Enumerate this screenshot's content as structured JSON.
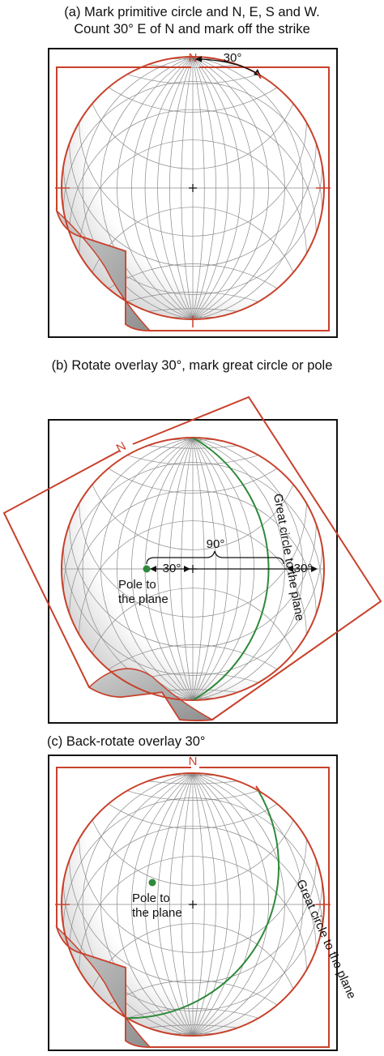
{
  "panels": [
    {
      "id": "a",
      "caption_line1": "(a) Mark primitive circle and N, E, S and W.",
      "caption_line2": "Count 30° E of N and mark off the strike",
      "north_label": "N",
      "angle_label": "30°"
    },
    {
      "id": "b",
      "caption_line1": "(b) Rotate overlay 30°, mark great circle or pole",
      "north_label": "N",
      "label_90": "90°",
      "label_30_left": "30°",
      "label_30_right": "30°",
      "pole_line1": "Pole to",
      "pole_line2": "the plane",
      "great_circle_label": "Great circle to the plane"
    },
    {
      "id": "c",
      "caption_line1": "(c) Back-rotate overlay 30°",
      "north_label": "N",
      "pole_line1": "Pole to",
      "pole_line2": "the plane",
      "great_circle_label": "Great circle to the plane"
    }
  ],
  "colors": {
    "overlay_red": "#c8412b",
    "great_circle_green": "#2e8a3a",
    "pole_green": "#2e8a3a",
    "grid_gray": "#8a8a8a",
    "frame_black": "#111111"
  },
  "net": {
    "type": "equal-angle stereonet (Wulff net)",
    "grid_interval_deg": 10,
    "strike_deg": 30,
    "dip_deg": 60
  }
}
